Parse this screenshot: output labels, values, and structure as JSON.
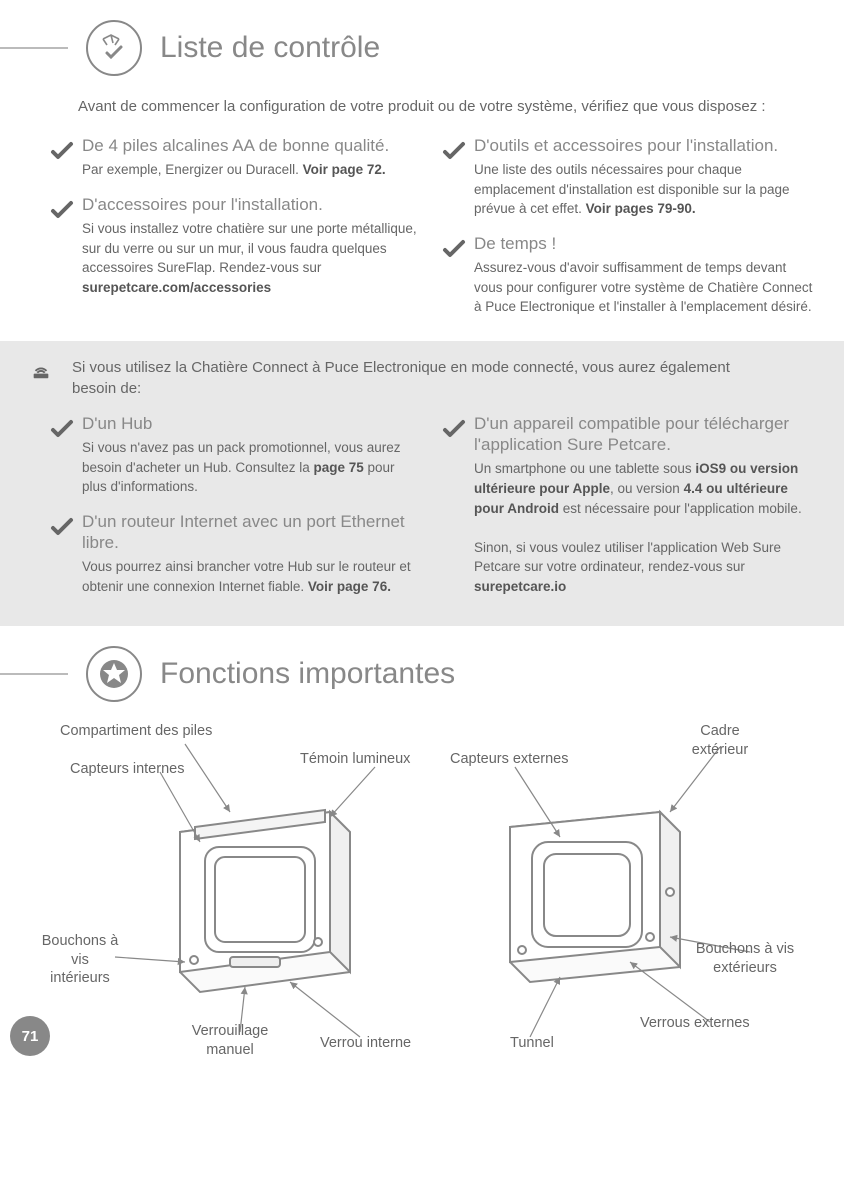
{
  "page_number": "71",
  "colors": {
    "text": "#666666",
    "muted": "#888888",
    "bg": "#ffffff",
    "grey_box": "#e8e8e8",
    "line": "#bbbbbb"
  },
  "section1": {
    "title": "Liste de contrôle",
    "intro": "Avant de commencer la configuration de votre produit ou de votre système, vérifiez que vous disposez :",
    "items_left": [
      {
        "title": "De 4 piles alcalines AA de bonne qualité.",
        "body_html": "Par exemple, Energizer ou Duracell. <b>Voir page 72.</b>"
      },
      {
        "title": "D'accessoires pour l'installation.",
        "body_html": "Si vous installez votre chatière sur une porte métallique, sur du verre ou sur un mur, il vous faudra quelques accessoires SureFlap. Rendez-vous sur <b>surepetcare.com/accessories</b>"
      }
    ],
    "items_right": [
      {
        "title": "D'outils et accessoires pour l'installation.",
        "body_html": "Une liste des outils nécessaires pour chaque emplacement d'installation est disponible sur la page prévue à cet effet. <b>Voir pages 79-90.</b>"
      },
      {
        "title": "De temps !",
        "body_html": "Assurez-vous d'avoir suffisamment de temps devant vous pour configurer votre système de Chatière Connect à Puce Electronique et l'installer à l'emplacement désiré."
      }
    ]
  },
  "grey_section": {
    "intro": "Si vous utilisez la Chatière Connect à Puce Electronique en mode connecté, vous aurez également besoin de:",
    "items_left": [
      {
        "title": "D'un Hub",
        "body_html": "Si vous n'avez pas un pack promotionnel, vous aurez besoin d'acheter un Hub. Consultez la <b>page 75</b> pour plus d'informations."
      },
      {
        "title": "D'un routeur Internet avec un port Ethernet libre.",
        "body_html": "Vous pourrez ainsi brancher votre Hub sur le routeur et obtenir une connexion Internet fiable. <b>Voir page 76.</b>"
      }
    ],
    "items_right": [
      {
        "title": "D'un appareil compatible pour télécharger l'application Sure Petcare.",
        "body_html": "Un smartphone ou une tablette sous <b>iOS9 ou version ultérieure pour Apple</b>, ou version <b>4.4 ou ultérieure pour Android</b> est nécessaire pour l'application mobile.<br><br>Sinon, si vous voulez utiliser l'application Web Sure Petcare sur votre ordinateur, rendez-vous sur <b>surepetcare.io</b>"
      }
    ]
  },
  "section2": {
    "title": "Fonctions importantes",
    "labels": {
      "battery": "Compartiment des piles",
      "internal_sensors": "Capteurs internes",
      "light": "Témoin lumineux",
      "screw_caps_int": "Bouchons à vis intérieurs",
      "manual_lock": "Verrouillage manuel",
      "internal_latch": "Verrou interne",
      "external_sensors": "Capteurs externes",
      "outer_frame": "Cadre extérieur",
      "screw_caps_ext": "Bouchons à vis extérieurs",
      "external_latches": "Verrous externes",
      "tunnel": "Tunnel"
    }
  }
}
